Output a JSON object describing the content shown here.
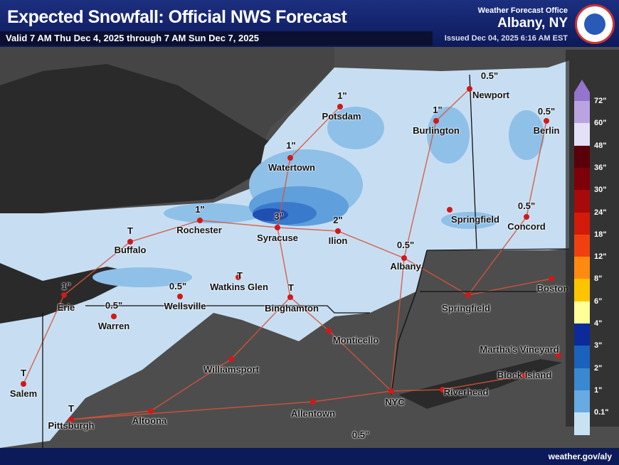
{
  "header": {
    "title": "Expected Snowfall: Official NWS Forecast",
    "valid": "Valid 7 AM Thu Dec 4, 2025 through 7 AM Sun Dec 7, 2025",
    "office_label": "Weather Forecast Office",
    "office": "Albany, NY",
    "issued": "Issued Dec 04, 2025 6:16 AM EST"
  },
  "footer": {
    "url": "weather.gov/aly"
  },
  "colors": {
    "water": "#2a2a2a",
    "outside_land": "#4d4d4d",
    "snow_light": "#c7def2",
    "snow_1": "#8fc0e8",
    "snow_2": "#5f9fdc",
    "snow_3": "#3a7acc",
    "snow_4": "#1f4fb0",
    "roads": "#d8543a"
  },
  "cities": [
    "Potsdam",
    "Burlington",
    "Newport",
    "Berlin",
    "Watertown",
    "Rochester",
    "Syracuse",
    "Ilion",
    "Buffalo",
    "Albany",
    "Springfield",
    "Concord",
    "Erie",
    "Wellsville",
    "Warren",
    "Watkins Glen",
    "Binghamton",
    "Monticello",
    "Springfield",
    "Boston",
    "Williamsport",
    "Block Island",
    "Riverhead",
    "NYC",
    "Allentown",
    "Altoona",
    "Salem",
    "Pittsburgh",
    "Martha's Vineyard"
  ],
  "amounts": [
    "0.5\"",
    "1\"",
    "1\"",
    "0.5\"",
    "1\"",
    "1\"",
    "3\"",
    "2\"",
    "0.5\"",
    "0.5\"",
    "T",
    "1\"",
    "0.5\"",
    "T",
    "T",
    "0.5\"",
    "T",
    "T",
    "0.5\""
  ],
  "legend": {
    "labels": [
      "72\"",
      "60\"",
      "48\"",
      "36\"",
      "30\"",
      "24\"",
      "18\"",
      "12\"",
      "8\"",
      "6\"",
      "4\"",
      "3\"",
      "2\"",
      "1\"",
      "0.1\""
    ],
    "colors": [
      "#9474cc",
      "#b9a3e2",
      "#e4e0f8",
      "#5a0008",
      "#7e0008",
      "#a60a0a",
      "#d41a0a",
      "#f04010",
      "#ff8a10",
      "#ffc400",
      "#ffff9a",
      "#0c2a9c",
      "#1a62bc",
      "#3a88d0",
      "#68aae2",
      "#c8e2f4"
    ]
  }
}
